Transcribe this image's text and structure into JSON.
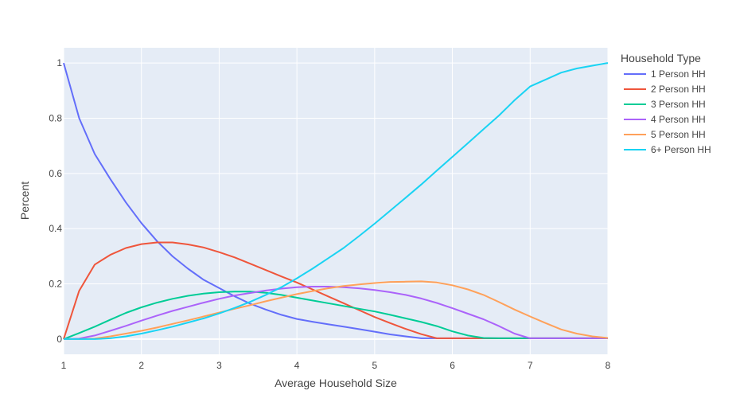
{
  "chart_data": {
    "type": "line",
    "xlabel": "Average Household Size",
    "ylabel": "Percent",
    "xlim": [
      1,
      8
    ],
    "ylim": [
      -0.055,
      1.055
    ],
    "x_ticks": [
      1,
      2,
      3,
      4,
      5,
      6,
      7,
      8
    ],
    "y_ticks": [
      0,
      0.2,
      0.4,
      0.6,
      0.8,
      1
    ],
    "y_tick_labels": [
      "0",
      "0.2",
      "0.4",
      "0.6",
      "0.8",
      "1"
    ],
    "grid": true,
    "legend": {
      "title": "Household Type",
      "placement": "right"
    },
    "colors": {
      "plot_bg": "#e5ecf6",
      "grid": "#ffffff"
    },
    "series": [
      {
        "name": "1 Person HH",
        "color": "#636efa",
        "x": [
          1,
          1.2,
          1.4,
          1.6,
          1.8,
          2,
          2.2,
          2.4,
          2.6,
          2.8,
          3,
          3.2,
          3.4,
          3.6,
          3.8,
          4,
          4.2,
          4.4,
          4.6,
          4.8,
          5,
          5.2,
          5.4,
          5.6,
          5.8,
          6,
          6.2,
          6.4,
          6.6,
          6.8,
          7,
          7.2,
          7.4,
          7.6,
          7.8,
          8
        ],
        "y": [
          1.0,
          0.8,
          0.67,
          0.58,
          0.495,
          0.42,
          0.355,
          0.3,
          0.255,
          0.215,
          0.185,
          0.155,
          0.128,
          0.107,
          0.088,
          0.073,
          0.063,
          0.054,
          0.045,
          0.036,
          0.027,
          0.017,
          0.01,
          0.003,
          0.003,
          0.003,
          0.003,
          0.003,
          0.003,
          0.003,
          0.003,
          0.003,
          0.003,
          0.003,
          0.003,
          0.003
        ]
      },
      {
        "name": "2 Person HH",
        "color": "#ef553b",
        "x": [
          1,
          1.2,
          1.4,
          1.6,
          1.8,
          2,
          2.2,
          2.4,
          2.6,
          2.8,
          3,
          3.2,
          3.4,
          3.6,
          3.8,
          4,
          4.2,
          4.4,
          4.6,
          4.8,
          5,
          5.2,
          5.4,
          5.6,
          5.8,
          6,
          6.2,
          6.4,
          6.6,
          6.8,
          7,
          7.2,
          7.4,
          7.6,
          7.8,
          8
        ],
        "y": [
          0.0,
          0.175,
          0.27,
          0.305,
          0.33,
          0.344,
          0.35,
          0.35,
          0.343,
          0.332,
          0.315,
          0.296,
          0.273,
          0.25,
          0.227,
          0.205,
          0.18,
          0.155,
          0.13,
          0.105,
          0.08,
          0.058,
          0.037,
          0.018,
          0.003,
          0.003,
          0.003,
          0.003,
          0.003,
          0.003,
          0.003,
          0.003,
          0.003,
          0.003,
          0.003,
          0.003
        ]
      },
      {
        "name": "3 Person HH",
        "color": "#00cc96",
        "x": [
          1,
          1.2,
          1.4,
          1.6,
          1.8,
          2,
          2.2,
          2.4,
          2.6,
          2.8,
          3,
          3.2,
          3.4,
          3.6,
          3.8,
          4,
          4.2,
          4.4,
          4.6,
          4.8,
          5,
          5.2,
          5.4,
          5.6,
          5.8,
          6,
          6.2,
          6.4,
          6.6,
          6.8,
          7,
          7.2,
          7.4,
          7.6,
          7.8,
          8
        ],
        "y": [
          0.0,
          0.022,
          0.045,
          0.07,
          0.095,
          0.115,
          0.132,
          0.146,
          0.157,
          0.165,
          0.17,
          0.172,
          0.172,
          0.168,
          0.16,
          0.15,
          0.14,
          0.13,
          0.12,
          0.11,
          0.1,
          0.088,
          0.075,
          0.062,
          0.047,
          0.028,
          0.013,
          0.004,
          0.003,
          0.003,
          0.003,
          0.003,
          0.003,
          0.003,
          0.003,
          0.003
        ]
      },
      {
        "name": "4 Person HH",
        "color": "#ab63fa",
        "x": [
          1,
          1.2,
          1.4,
          1.6,
          1.8,
          2,
          2.2,
          2.4,
          2.6,
          2.8,
          3,
          3.2,
          3.4,
          3.6,
          3.8,
          4,
          4.2,
          4.4,
          4.6,
          4.8,
          5,
          5.2,
          5.4,
          5.6,
          5.8,
          6,
          6.2,
          6.4,
          6.6,
          6.8,
          7,
          7.2,
          7.4,
          7.6,
          7.8,
          8
        ],
        "y": [
          0.0,
          0.002,
          0.013,
          0.03,
          0.048,
          0.067,
          0.085,
          0.102,
          0.117,
          0.132,
          0.146,
          0.158,
          0.167,
          0.176,
          0.183,
          0.188,
          0.19,
          0.19,
          0.188,
          0.184,
          0.178,
          0.17,
          0.16,
          0.147,
          0.131,
          0.112,
          0.092,
          0.072,
          0.047,
          0.02,
          0.003,
          0.003,
          0.003,
          0.003,
          0.003,
          0.003
        ]
      },
      {
        "name": "5 Person HH",
        "color": "#ffa15a",
        "x": [
          1,
          1.2,
          1.4,
          1.6,
          1.8,
          2,
          2.2,
          2.4,
          2.6,
          2.8,
          3,
          3.2,
          3.4,
          3.6,
          3.8,
          4,
          4.2,
          4.4,
          4.6,
          4.8,
          5,
          5.2,
          5.4,
          5.6,
          5.8,
          6,
          6.2,
          6.4,
          6.6,
          6.8,
          7,
          7.2,
          7.4,
          7.6,
          7.8,
          8
        ],
        "y": [
          0.0,
          0.0,
          0.002,
          0.01,
          0.02,
          0.03,
          0.042,
          0.055,
          0.068,
          0.082,
          0.096,
          0.11,
          0.123,
          0.137,
          0.15,
          0.163,
          0.174,
          0.184,
          0.192,
          0.198,
          0.203,
          0.207,
          0.208,
          0.209,
          0.205,
          0.195,
          0.18,
          0.16,
          0.134,
          0.107,
          0.082,
          0.058,
          0.035,
          0.02,
          0.01,
          0.004
        ]
      },
      {
        "name": "6+ Person HH",
        "color": "#19d3f3",
        "x": [
          1,
          1.2,
          1.4,
          1.6,
          1.8,
          2,
          2.2,
          2.4,
          2.6,
          2.8,
          3,
          3.2,
          3.4,
          3.6,
          3.8,
          4,
          4.2,
          4.4,
          4.6,
          4.8,
          5,
          5.2,
          5.4,
          5.6,
          5.8,
          6,
          6.2,
          6.4,
          6.6,
          6.8,
          7,
          7.2,
          7.4,
          7.6,
          7.8,
          8
        ],
        "y": [
          0.0,
          0.0,
          0.0,
          0.003,
          0.01,
          0.02,
          0.032,
          0.045,
          0.06,
          0.075,
          0.093,
          0.113,
          0.135,
          0.16,
          0.188,
          0.22,
          0.255,
          0.292,
          0.33,
          0.373,
          0.418,
          0.465,
          0.512,
          0.56,
          0.61,
          0.66,
          0.71,
          0.76,
          0.81,
          0.865,
          0.915,
          0.94,
          0.965,
          0.98,
          0.99,
          1.0
        ]
      }
    ]
  }
}
